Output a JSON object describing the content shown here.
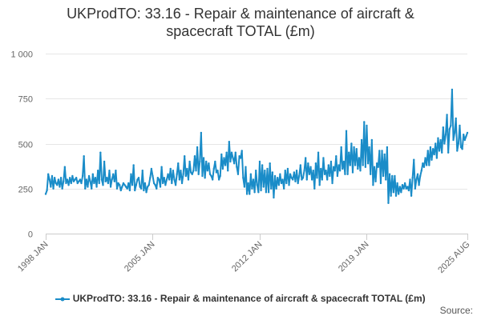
{
  "chart_data": {
    "type": "line",
    "title_line1": "UKProdTO: 33.16 - Repair & maintenance of aircraft &",
    "title_line2": "spacecraft TOTAL (£m)",
    "xlabel": "",
    "ylabel": "",
    "ylim": [
      0,
      1000
    ],
    "y_ticks": [
      {
        "value": 0,
        "label": "0"
      },
      {
        "value": 250,
        "label": "250"
      },
      {
        "value": 500,
        "label": "500"
      },
      {
        "value": 750,
        "label": "750"
      },
      {
        "value": 1000,
        "label": "1 000"
      }
    ],
    "x_range": {
      "start": "1998-01",
      "end": "2025-08"
    },
    "x_ticks": [
      {
        "month_index": 0,
        "label": "1998 JAN"
      },
      {
        "month_index": 84,
        "label": "2005 JAN"
      },
      {
        "month_index": 168,
        "label": "2012 JAN"
      },
      {
        "month_index": 252,
        "label": "2019 JAN"
      },
      {
        "month_index": 331,
        "label": "2025 AUG"
      }
    ],
    "series": [
      {
        "name": "UKProdTO: 33.16 - Repair & maintenance of aircraft & spacecraft TOTAL (£m)",
        "color": "#1a8cc8",
        "start": "1998-01",
        "frequency": "monthly",
        "values": [
          220,
          240,
          330,
          300,
          260,
          320,
          250,
          310,
          280,
          270,
          300,
          260,
          310,
          250,
          290,
          370,
          280,
          300,
          270,
          310,
          280,
          320,
          290,
          300,
          310,
          280,
          290,
          300,
          280,
          320,
          430,
          250,
          300,
          260,
          320,
          290,
          250,
          330,
          280,
          310,
          260,
          350,
          280,
          450,
          300,
          270,
          400,
          290,
          310,
          280,
          350,
          260,
          300,
          330,
          290,
          350,
          250,
          280,
          270,
          240,
          260,
          280,
          270,
          260,
          250,
          280,
          240,
          330,
          270,
          380,
          240,
          270,
          300,
          310,
          260,
          250,
          350,
          240,
          280,
          230,
          260,
          270,
          310,
          360,
          320,
          280,
          270,
          250,
          310,
          300,
          260,
          370,
          280,
          310,
          270,
          300,
          330,
          300,
          360,
          280,
          350,
          300,
          270,
          330,
          390,
          300,
          350,
          280,
          330,
          430,
          320,
          360,
          300,
          400,
          340,
          330,
          350,
          430,
          350,
          480,
          330,
          400,
          560,
          320,
          420,
          310,
          400,
          350,
          390,
          330,
          320,
          300,
          360,
          400,
          340,
          350,
          300,
          320,
          440,
          360,
          420,
          380,
          450,
          350,
          510,
          400,
          450,
          420,
          390,
          450,
          370,
          330,
          430,
          420,
          460,
          310,
          260,
          370,
          220,
          280,
          220,
          330,
          250,
          300,
          230,
          350,
          270,
          230,
          400,
          240,
          380,
          260,
          350,
          230,
          360,
          230,
          390,
          250,
          340,
          200,
          320,
          250,
          310,
          270,
          330,
          280,
          300,
          250,
          350,
          280,
          360,
          270,
          330,
          310,
          300,
          340,
          290,
          350,
          280,
          320,
          380,
          300,
          310,
          350,
          420,
          300,
          390,
          330,
          370,
          300,
          350,
          250,
          390,
          310,
          450,
          270,
          360,
          300,
          420,
          330,
          350,
          300,
          380,
          320,
          400,
          280,
          370,
          350,
          430,
          320,
          380,
          350,
          480,
          360,
          400,
          330,
          570,
          330,
          450,
          380,
          500,
          340,
          480,
          380,
          470,
          360,
          420,
          350,
          520,
          380,
          620,
          370,
          600,
          390,
          480,
          330,
          520,
          270,
          370,
          290,
          390,
          370,
          460,
          280,
          460,
          320,
          440,
          300,
          480,
          170,
          330,
          210,
          320,
          230,
          320,
          210,
          280,
          220,
          260,
          230,
          270,
          250,
          280,
          250,
          260,
          240,
          300,
          210,
          310,
          410,
          250,
          300,
          330,
          270,
          320,
          350,
          390,
          370,
          420,
          380,
          460,
          380,
          480,
          410,
          470,
          440,
          500,
          420,
          530,
          460,
          520,
          450,
          590,
          500,
          550,
          660,
          450,
          580,
          600,
          800,
          520,
          560,
          640,
          460,
          500,
          600,
          480,
          470,
          550,
          520,
          540,
          560
        ]
      }
    ]
  },
  "legend": {
    "label": "UKProdTO: 33.16 - Repair & maintenance of aircraft & spacecraft TOTAL (£m)"
  },
  "source": {
    "label": "Source:"
  }
}
